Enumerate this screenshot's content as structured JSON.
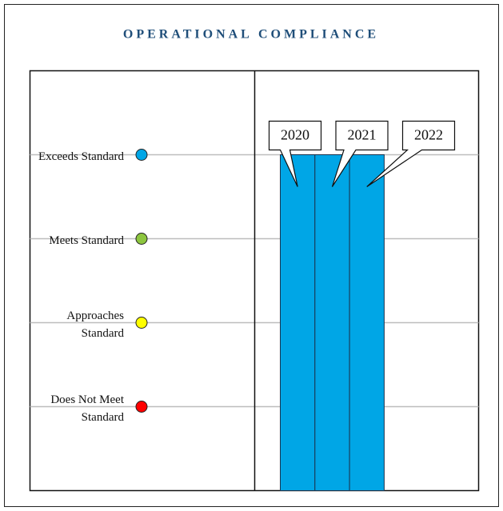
{
  "chart_data": {
    "type": "bar",
    "title": "OPERATIONAL COMPLIANCE",
    "categories": [
      "2020",
      "2021",
      "2022"
    ],
    "values": [
      4,
      4,
      4
    ],
    "color": "#00a6e6",
    "ylim": [
      0,
      5
    ],
    "yticks": [
      {
        "value": 4,
        "label": "Exceeds Standard"
      },
      {
        "value": 3,
        "label": "Meets Standard"
      },
      {
        "value": 2,
        "label": "Approaches Standard"
      },
      {
        "value": 1,
        "label": "Does Not Meet Standard"
      }
    ],
    "tick_colors": [
      "#00a6e6",
      "#8dc63f",
      "#ffff00",
      "#ff0000"
    ],
    "grid": true
  }
}
